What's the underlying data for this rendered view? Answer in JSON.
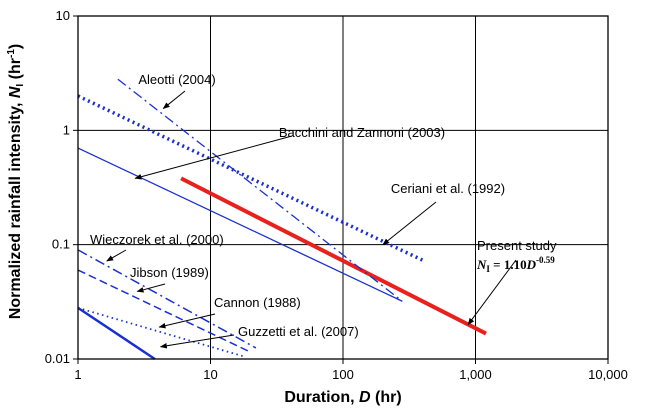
{
  "chart_data": {
    "type": "line",
    "xscale": "log",
    "yscale": "log",
    "xlim": [
      1,
      10000
    ],
    "ylim": [
      0.01,
      10
    ],
    "grid": true,
    "xlabel": "Duration, D (hr)",
    "ylabel": "Normalized rainfall intensity, N₁ (hr⁻¹)",
    "xlabel_parts": {
      "pre": "Duration, ",
      "var": "D",
      "post": " (hr)"
    },
    "ylabel_parts": {
      "pre": "Normalized rainfall intensity, ",
      "var": "N",
      "sub": "I",
      "mid": " (hr",
      "sup": "-1",
      "post": ")"
    },
    "xticks": [
      {
        "value": 1,
        "label": "1"
      },
      {
        "value": 10,
        "label": "10"
      },
      {
        "value": 100,
        "label": "100"
      },
      {
        "value": 1000,
        "label": "1,000"
      },
      {
        "value": 10000,
        "label": "10,000"
      }
    ],
    "yticks": [
      {
        "value": 0.01,
        "label": "0.01"
      },
      {
        "value": 0.1,
        "label": "0.1"
      },
      {
        "value": 1,
        "label": "1"
      },
      {
        "value": 10,
        "label": "10"
      }
    ],
    "series": [
      {
        "name": "Present study",
        "color": "#e8211d",
        "style": "solid",
        "width": 4,
        "x": [
          6,
          1200
        ],
        "y": [
          0.38,
          0.0167
        ]
      },
      {
        "name": "Aleotti (2004)",
        "color": "#1a2fd1",
        "style": "dashdot",
        "width": 1.3,
        "x": [
          2,
          280
        ],
        "y": [
          2.8,
          0.032
        ]
      },
      {
        "name": "Bacchini and Zannoni (2003)",
        "color": "#1a2fd1",
        "style": "solid",
        "width": 1.3,
        "x": [
          1,
          280
        ],
        "y": [
          0.7,
          0.032
        ]
      },
      {
        "name": "Ceriani et al. (1992)",
        "color": "#1a2fd1",
        "style": "dotted",
        "width": 3.5,
        "x": [
          1,
          400
        ],
        "y": [
          2.0,
          0.073
        ]
      },
      {
        "name": "Wieczorek et al. (2000)",
        "color": "#1a2fd1",
        "style": "dashdot",
        "width": 1.5,
        "x": [
          1,
          22
        ],
        "y": [
          0.09,
          0.0125
        ]
      },
      {
        "name": "Jibson (1989)",
        "color": "#1a2fd1",
        "style": "dashed",
        "width": 1.5,
        "x": [
          1,
          20
        ],
        "y": [
          0.06,
          0.0115
        ]
      },
      {
        "name": "Cannon (1988)",
        "color": "#1a2fd1",
        "style": "dotted",
        "width": 1.8,
        "x": [
          1,
          18
        ],
        "y": [
          0.028,
          0.0105
        ]
      },
      {
        "name": "Guzzetti et al. (2007)",
        "color": "#1a2fd1",
        "style": "solid",
        "width": 2.5,
        "x": [
          1,
          3.8
        ],
        "y": [
          0.028,
          0.01
        ]
      }
    ],
    "annotations": [
      {
        "text": "Aleotti (2004)",
        "series": "Aleotti (2004)"
      },
      {
        "text": "Bacchini and Zannoni (2003)",
        "series": "Bacchini and Zannoni (2003)"
      },
      {
        "text": "Ceriani et al. (1992)",
        "series": "Ceriani et al. (1992)"
      },
      {
        "text": "Present study",
        "series": "Present study"
      },
      {
        "text": "Wieczorek et al. (2000)",
        "series": "Wieczorek et al. (2000)"
      },
      {
        "text": "Jibson (1989)",
        "series": "Jibson (1989)"
      },
      {
        "text": "Cannon (1988)",
        "series": "Cannon (1988)"
      },
      {
        "text": "Guzzetti et al. (2007)",
        "series": "Guzzetti et al. (2007)"
      }
    ],
    "equation": {
      "var": "N",
      "sub": "I",
      "eq": " = 1.10",
      "var2": "D",
      "sup": "-0.59"
    }
  }
}
